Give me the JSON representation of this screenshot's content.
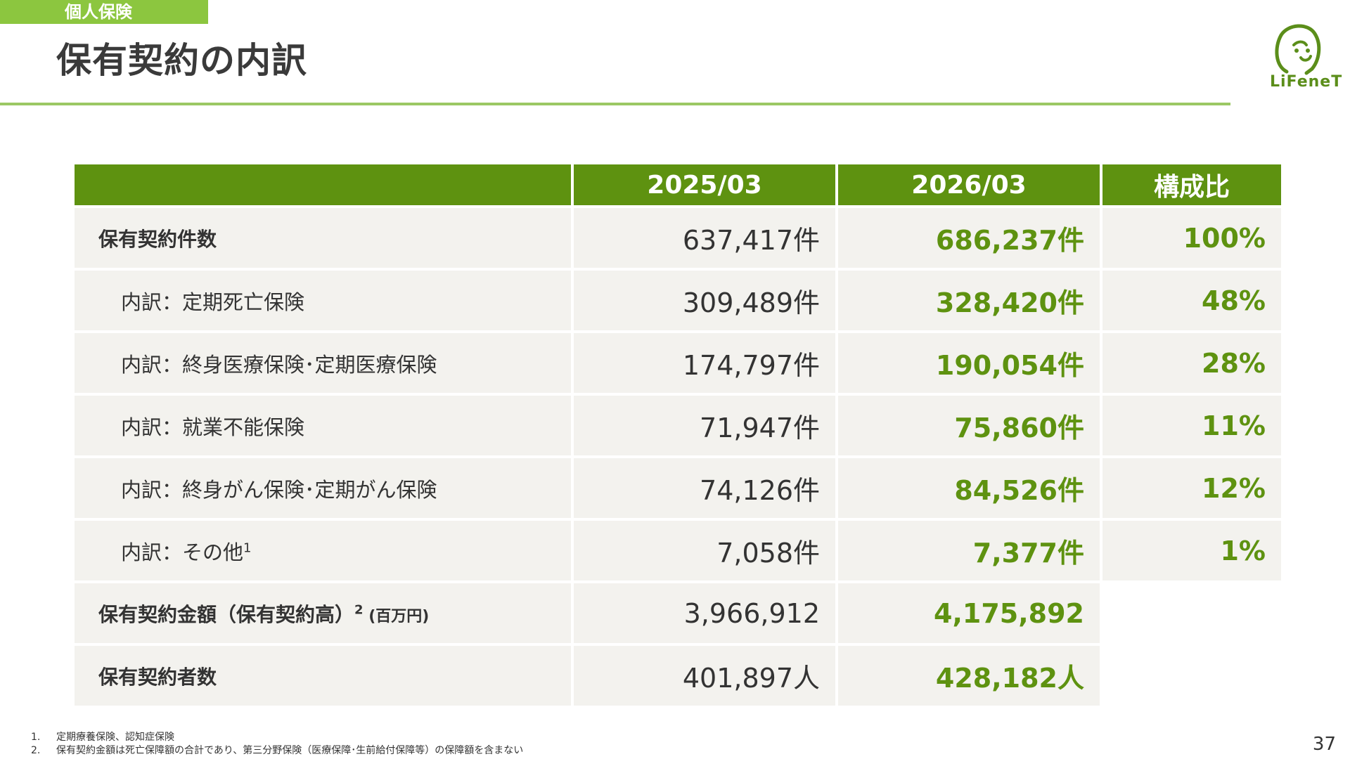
{
  "header": {
    "section_tag": "個人保険",
    "title": "保有契約の内訳",
    "logo_text": "LiFeneT",
    "accent_color": "#8cc63f",
    "header_fill": "#5e9210"
  },
  "table": {
    "headers": [
      "",
      "2025/03",
      "2026/03",
      "構成比"
    ],
    "rows": [
      {
        "label": "保有契約件数",
        "sup": "",
        "suffix": "",
        "v1": "637,417件",
        "v2": "686,237件",
        "v3": "100%",
        "type": "main"
      },
      {
        "label": "内訳：定期死亡保険",
        "sup": "",
        "suffix": "",
        "v1": "309,489件",
        "v2": "328,420件",
        "v3": "48%",
        "type": "sub"
      },
      {
        "label": "内訳：終身医療保険･定期医療保険",
        "sup": "",
        "suffix": "",
        "v1": "174,797件",
        "v2": "190,054件",
        "v3": "28%",
        "type": "sub"
      },
      {
        "label": "内訳：就業不能保険",
        "sup": "",
        "suffix": "",
        "v1": "71,947件",
        "v2": "75,860件",
        "v3": "11%",
        "type": "sub"
      },
      {
        "label": "内訳：終身がん保険･定期がん保険",
        "sup": "",
        "suffix": "",
        "v1": "74,126件",
        "v2": "84,526件",
        "v3": "12%",
        "type": "sub"
      },
      {
        "label": "内訳：その他",
        "sup": "1",
        "suffix": "",
        "v1": "7,058件",
        "v2": "7,377件",
        "v3": "1%",
        "type": "sub"
      },
      {
        "label": "保有契約金額（保有契約高）",
        "sup": "2",
        "suffix": " (百万円)",
        "v1": "3,966,912",
        "v2": "4,175,892",
        "v3": "",
        "type": "main"
      },
      {
        "label": "保有契約者数",
        "sup": "",
        "suffix": "",
        "v1": "401,897人",
        "v2": "428,182人",
        "v3": "",
        "type": "main"
      }
    ]
  },
  "footnotes": [
    {
      "num": "1.",
      "text": "定期療養保険、認知症保険"
    },
    {
      "num": "2.",
      "text": "保有契約金額は死亡保障額の合計であり、第三分野保険（医療保障･生前給付保障等）の保障額を含まない"
    }
  ],
  "page_number": "37"
}
